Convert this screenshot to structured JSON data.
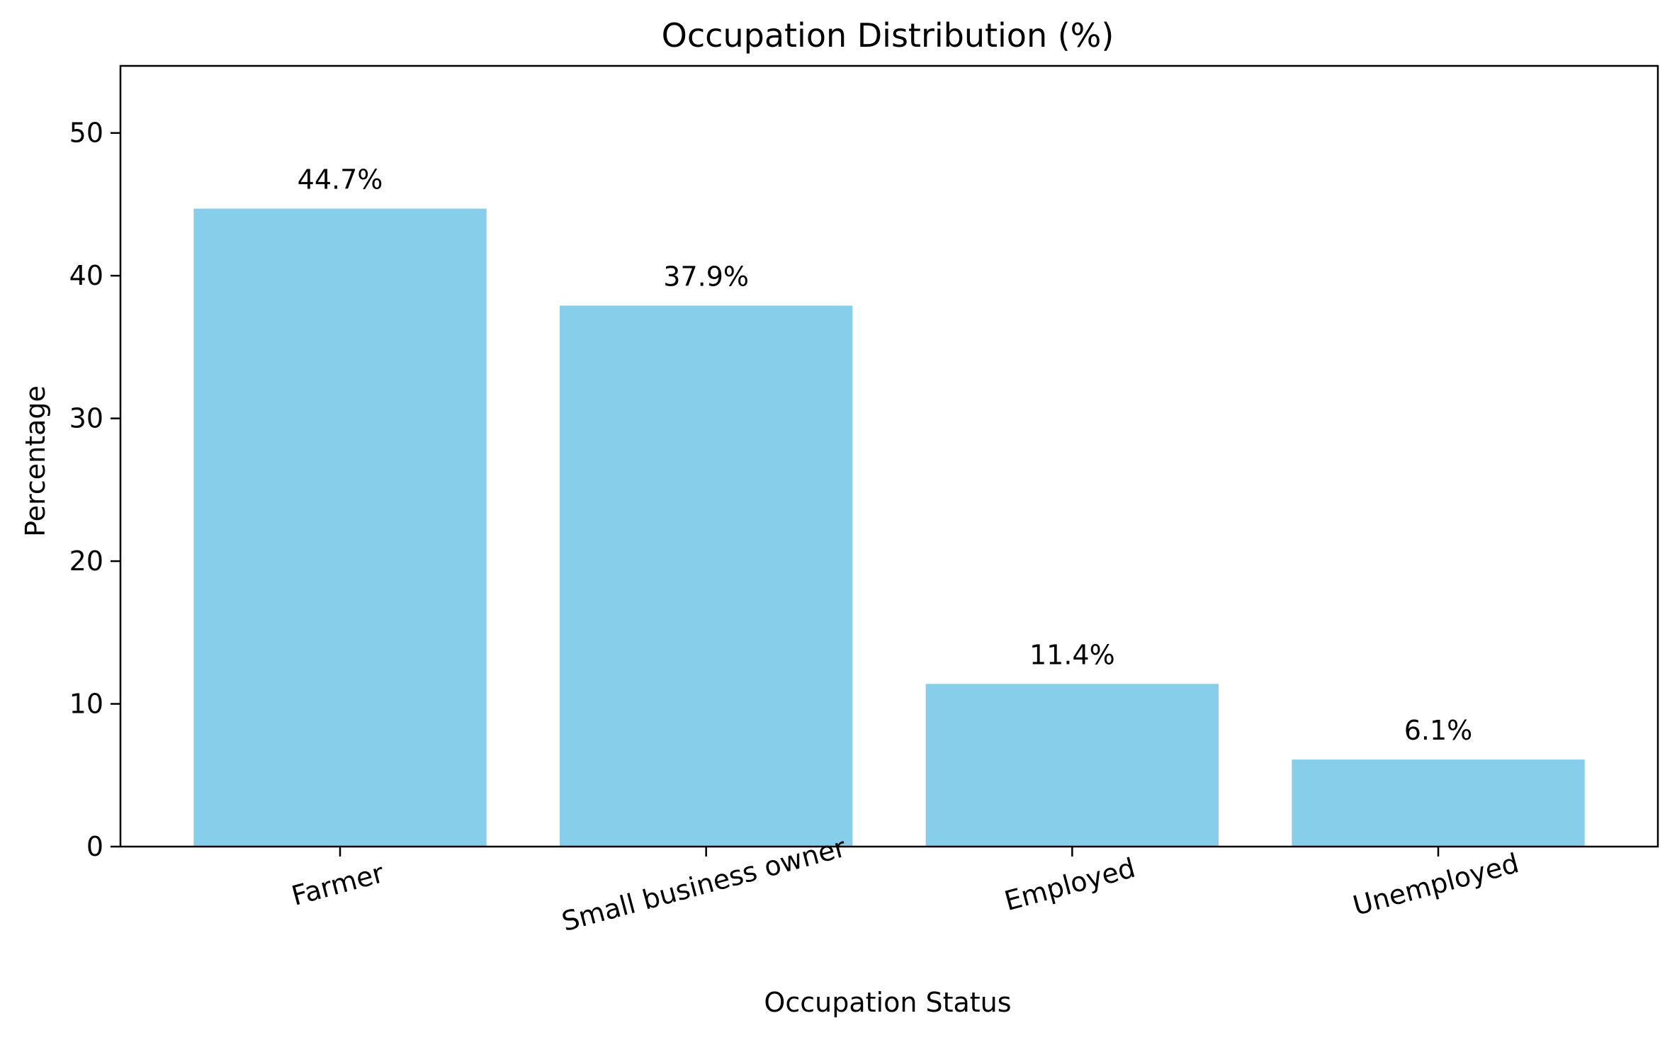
{
  "chart_data": {
    "type": "bar",
    "title": "Occupation Distribution (%)",
    "xlabel": "Occupation Status",
    "ylabel": "Percentage",
    "categories": [
      "Farmer",
      "Small business owner",
      "Employed",
      "Unemployed"
    ],
    "values": [
      44.7,
      37.9,
      11.4,
      6.1
    ],
    "data_labels": [
      "44.7%",
      "37.9%",
      "11.4%",
      "6.1%"
    ],
    "yticks": [
      0,
      10,
      20,
      30,
      40,
      50
    ],
    "ylim": [
      0,
      54.7
    ],
    "grid": false,
    "bar_color": "#87CEEB",
    "xtick_rotation_deg": 15
  }
}
